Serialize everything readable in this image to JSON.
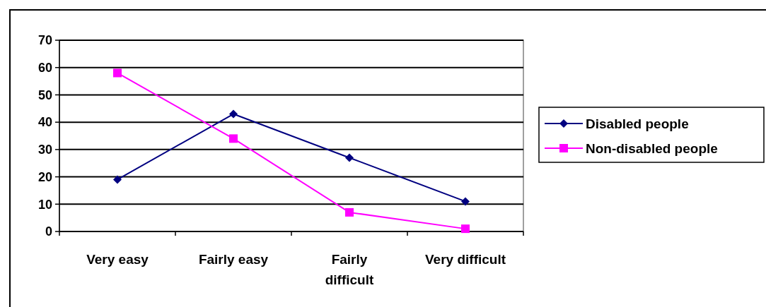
{
  "chart_data": {
    "type": "line",
    "categories": [
      "Very easy",
      "Fairly easy",
      "Fairly difficult",
      "Very difficult"
    ],
    "series": [
      {
        "name": "Disabled people",
        "color": "#000080",
        "values": [
          19,
          43,
          27,
          11
        ],
        "marker": "diamond"
      },
      {
        "name": "Non-disabled people",
        "color": "#ff00ff",
        "values": [
          58,
          34,
          7,
          1
        ],
        "marker": "square"
      }
    ],
    "ylim": [
      0,
      70
    ],
    "yticks": [
      0,
      10,
      20,
      30,
      40,
      50,
      60,
      70
    ],
    "grid": "y",
    "legend": "right"
  }
}
